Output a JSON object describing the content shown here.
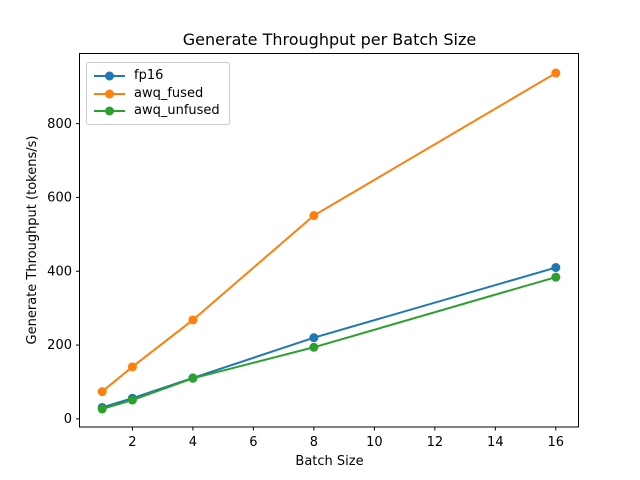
{
  "chart_data": {
    "type": "line",
    "title": "Generate Throughput per Batch Size",
    "xlabel": "Batch Size",
    "ylabel": "Generate Throughput (tokens/s)",
    "x": [
      1,
      2,
      4,
      8,
      16
    ],
    "series": [
      {
        "name": "fp16",
        "color": "#1f77b4",
        "values": [
          31,
          56,
          111,
          220,
          410
        ]
      },
      {
        "name": "awq_fused",
        "color": "#ff7f0e",
        "values": [
          74,
          141,
          268,
          551,
          937
        ]
      },
      {
        "name": "awq_unfused",
        "color": "#2ca02c",
        "values": [
          27,
          51,
          110,
          194,
          384
        ]
      }
    ],
    "xticks": [
      2,
      4,
      6,
      8,
      10,
      12,
      14,
      16
    ],
    "yticks": [
      0,
      200,
      400,
      600,
      800
    ],
    "xlim": [
      0.25,
      16.75
    ],
    "ylim": [
      -22,
      990
    ],
    "grid": false,
    "marker": "o",
    "legend_position": "upper left",
    "frame_color": "#000000",
    "background_color": "#ffffff"
  }
}
